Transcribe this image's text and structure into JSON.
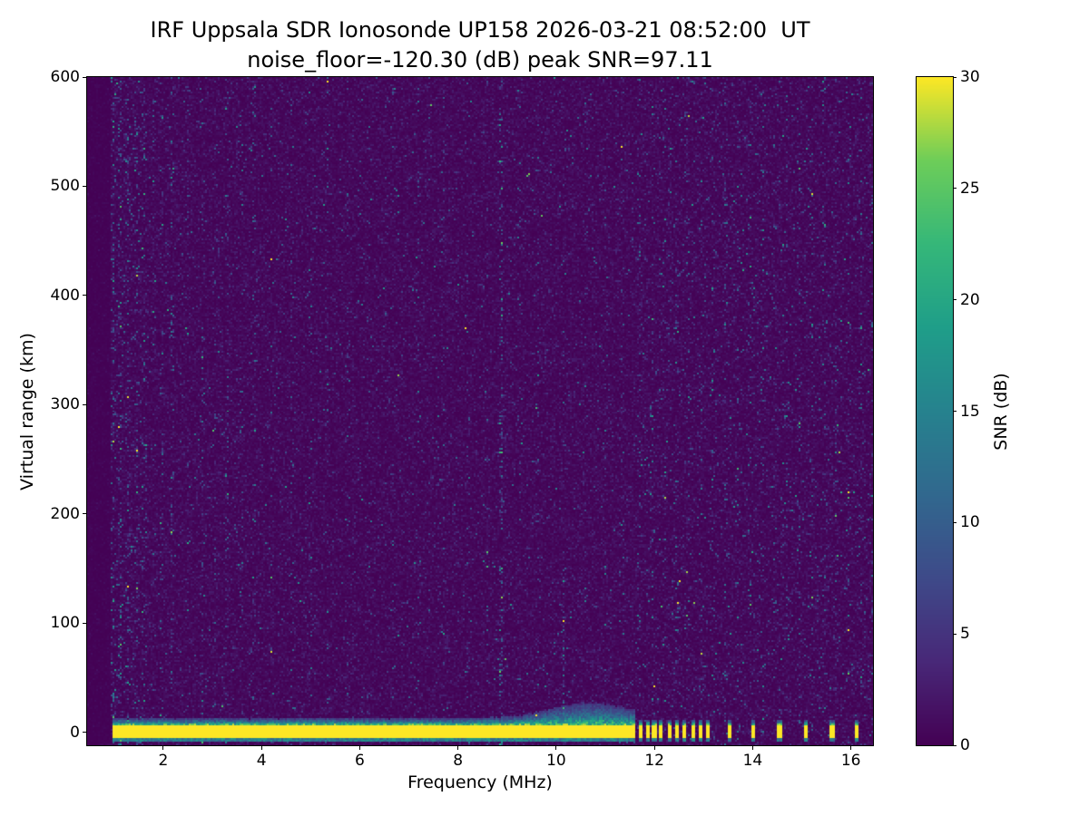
{
  "figure": {
    "title_line1": "IRF Uppsala SDR Ionosonde UP158 2026-03-21 08:52:00  UT",
    "title_line2": "noise_floor=-120.30 (dB) peak SNR=97.11"
  },
  "axes": {
    "xlabel": "Frequency (MHz)",
    "ylabel": "Virtual range (km)",
    "x_ticks": [
      2,
      4,
      6,
      8,
      10,
      12,
      14,
      16
    ],
    "y_ticks": [
      0,
      100,
      200,
      300,
      400,
      500,
      600
    ]
  },
  "colorbar": {
    "label": "SNR (dB)",
    "ticks": [
      0,
      5,
      10,
      15,
      20,
      25,
      30
    ],
    "min": 0,
    "max": 30
  },
  "chart_data": {
    "type": "heatmap",
    "title": "IRF Uppsala SDR Ionosonde UP158 2026-03-21 08:52:00  UT",
    "subtitle": "noise_floor=-120.30 (dB) peak SNR=97.11",
    "xlabel": "Frequency (MHz)",
    "ylabel": "Virtual range (km)",
    "colorbar_label": "SNR (dB)",
    "xlim": [
      0.45,
      16.45
    ],
    "ylim": [
      -12,
      600
    ],
    "clim": [
      0,
      30
    ],
    "x_ticks": [
      2,
      4,
      6,
      8,
      10,
      12,
      14,
      16
    ],
    "y_ticks": [
      0,
      100,
      200,
      300,
      400,
      500,
      600
    ],
    "colorbar_ticks": [
      0,
      5,
      10,
      15,
      20,
      25,
      30
    ],
    "noise_floor_db": -120.3,
    "peak_snr_db": 97.11,
    "colormap": "viridis",
    "colormap_stops": [
      {
        "t": 0.0,
        "rgb": [
          68,
          1,
          84
        ]
      },
      {
        "t": 0.125,
        "rgb": [
          72,
          40,
          120
        ]
      },
      {
        "t": 0.25,
        "rgb": [
          62,
          74,
          137
        ]
      },
      {
        "t": 0.375,
        "rgb": [
          49,
          104,
          142
        ]
      },
      {
        "t": 0.5,
        "rgb": [
          38,
          130,
          142
        ]
      },
      {
        "t": 0.625,
        "rgb": [
          31,
          158,
          137
        ]
      },
      {
        "t": 0.75,
        "rgb": [
          53,
          183,
          121
        ]
      },
      {
        "t": 0.875,
        "rgb": [
          109,
          205,
          89
        ]
      },
      {
        "t": 1.0,
        "rgb": [
          253,
          231,
          37
        ]
      }
    ],
    "seed": 20260321,
    "background_noise_mean_db": 0.9,
    "data_start_mhz": 0.93,
    "ground_return": {
      "f_start": 0.95,
      "f_end": 11.62,
      "y_bottom_km": -6,
      "y_top_km": 7,
      "snr_db": 30,
      "fringe_base_km": 5,
      "fringe_center_mhz": 10.7,
      "fringe_center_width_mhz": 1.15,
      "fringe_extra_km": 14
    },
    "ground_blobs_mhz": [
      11.72,
      11.86,
      12.0,
      12.14,
      12.3,
      12.46,
      12.62,
      12.78,
      12.95,
      13.1,
      13.52,
      14.02,
      14.55,
      15.08,
      15.62,
      16.12
    ],
    "blob_halfwidth_mhz": 0.04,
    "interference_streaks": [
      {
        "f": 0.98,
        "s": 2.2
      },
      {
        "f": 1.12,
        "s": 3.0
      },
      {
        "f": 1.28,
        "s": 2.0
      },
      {
        "f": 1.45,
        "s": 1.6
      },
      {
        "f": 1.62,
        "s": 2.2
      },
      {
        "f": 1.8,
        "s": 1.2
      },
      {
        "f": 1.97,
        "s": 1.4
      },
      {
        "f": 2.18,
        "s": 2.4
      },
      {
        "f": 2.5,
        "s": 1.0
      },
      {
        "f": 2.8,
        "s": 1.6
      },
      {
        "f": 3.05,
        "s": 1.1
      },
      {
        "f": 3.3,
        "s": 2.4
      },
      {
        "f": 3.6,
        "s": 1.3
      },
      {
        "f": 3.85,
        "s": 1.9
      },
      {
        "f": 4.2,
        "s": 1.0
      },
      {
        "f": 4.62,
        "s": 1.4
      },
      {
        "f": 5.0,
        "s": 1.0
      },
      {
        "f": 5.35,
        "s": 1.6
      },
      {
        "f": 5.75,
        "s": 0.9
      },
      {
        "f": 6.2,
        "s": 0.8
      },
      {
        "f": 6.7,
        "s": 0.7
      },
      {
        "f": 7.2,
        "s": 0.8
      },
      {
        "f": 7.7,
        "s": 0.7
      },
      {
        "f": 8.2,
        "s": 0.8
      },
      {
        "f": 8.6,
        "s": 1.0
      },
      {
        "f": 8.88,
        "s": 5.5
      },
      {
        "f": 9.25,
        "s": 0.9
      },
      {
        "f": 9.62,
        "s": 1.3
      },
      {
        "f": 10.15,
        "s": 3.5,
        "ymax": 150
      },
      {
        "f": 10.6,
        "s": 1.0
      },
      {
        "f": 11.0,
        "s": 0.9
      },
      {
        "f": 11.35,
        "s": 1.3
      }
    ],
    "comb": {
      "start_mhz": 11.65,
      "spacing_mhz": 0.25,
      "strength": 1.2,
      "uniform_boost": 0.3
    }
  }
}
